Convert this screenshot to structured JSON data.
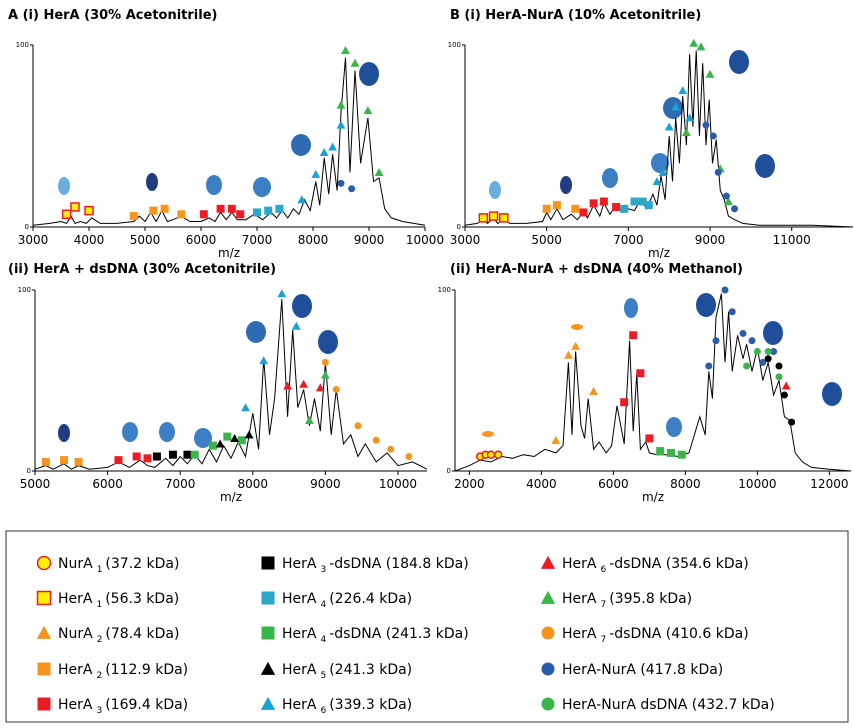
{
  "chart_data": [
    {
      "type": "line",
      "title": "A  (i) HerA (30% Acetonitrile)",
      "x_label": "m/z",
      "xlim": [
        3000,
        10000
      ],
      "xticks": [
        3000,
        4000,
        5000,
        6000,
        7000,
        8000,
        9000,
        10000
      ],
      "ylim": [
        0,
        100
      ],
      "yticks": [
        0,
        100
      ],
      "spectrum": {
        "color": "#000000",
        "x": [
          3000,
          3300,
          3500,
          3600,
          3680,
          3750,
          3850,
          3950,
          4050,
          4200,
          4500,
          4800,
          4900,
          5000,
          5100,
          5200,
          5300,
          5400,
          5500,
          5650,
          5800,
          6000,
          6150,
          6250,
          6350,
          6450,
          6550,
          6650,
          6800,
          6950,
          7100,
          7250,
          7350,
          7450,
          7550,
          7650,
          7750,
          7850,
          7950,
          8050,
          8120,
          8200,
          8280,
          8350,
          8430,
          8500,
          8580,
          8660,
          8750,
          8850,
          8980,
          9080,
          9180,
          9280,
          9400,
          9600,
          9800,
          10000
        ],
        "values": [
          1,
          2,
          3,
          2,
          6,
          2,
          3,
          2,
          5,
          2,
          2,
          3,
          6,
          3,
          8,
          3,
          9,
          3,
          4,
          6,
          3,
          3,
          5,
          3,
          8,
          4,
          8,
          4,
          4,
          7,
          4,
          8,
          5,
          9,
          5,
          10,
          7,
          15,
          9,
          25,
          12,
          38,
          18,
          40,
          20,
          63,
          93,
          30,
          86,
          35,
          60,
          25,
          27,
          10,
          5,
          3,
          2,
          1
        ]
      },
      "series": [
        {
          "marker": "square",
          "color": "#fff200",
          "edge": "#ed1c24",
          "x": [
            3600,
            3750,
            4000
          ],
          "values": [
            7,
            11,
            9
          ]
        },
        {
          "marker": "square",
          "color": "#f7941d",
          "x": [
            4800,
            5150,
            5350,
            5650
          ],
          "values": [
            6,
            9,
            10,
            7
          ]
        },
        {
          "marker": "square",
          "color": "#ed1c24",
          "x": [
            6050,
            6350,
            6550,
            6700
          ],
          "values": [
            7,
            10,
            10,
            7
          ]
        },
        {
          "marker": "square",
          "color": "#2aa7c9",
          "x": [
            7000,
            7200,
            7400
          ],
          "values": [
            8,
            9,
            10
          ]
        },
        {
          "marker": "triangle",
          "color": "#1ba1d6",
          "x": [
            7800,
            8050,
            8200,
            8350,
            8500
          ],
          "values": [
            15,
            29,
            41,
            44,
            56
          ]
        },
        {
          "marker": "triangle",
          "color": "#39b54a",
          "x": [
            8500,
            8580,
            8750,
            8980,
            9180
          ],
          "values": [
            67,
            97,
            90,
            64,
            30
          ]
        },
        {
          "marker": "circle",
          "color": "#2a5caa",
          "x": [
            8500,
            8690
          ],
          "values": [
            24,
            21
          ]
        }
      ]
    },
    {
      "type": "line",
      "title": "B  (i) HerA-NurA (10% Acetonitrile)",
      "x_label": "m/z",
      "xlim": [
        3000,
        12500
      ],
      "xticks": [
        3000,
        5000,
        7000,
        9000,
        11000
      ],
      "ylim": [
        0,
        100
      ],
      "yticks": [
        0,
        100
      ],
      "spectrum": {
        "color": "#000000",
        "x": [
          3000,
          3300,
          3450,
          3550,
          3700,
          3800,
          3950,
          4100,
          4500,
          4900,
          5000,
          5100,
          5250,
          5400,
          5600,
          5750,
          5900,
          6000,
          6150,
          6300,
          6400,
          6550,
          6700,
          6850,
          7000,
          7150,
          7300,
          7450,
          7600,
          7700,
          7800,
          7900,
          8000,
          8080,
          8160,
          8250,
          8330,
          8420,
          8500,
          8580,
          8660,
          8740,
          8820,
          8900,
          8980,
          9060,
          9150,
          9250,
          9350,
          9450,
          9600,
          9800,
          10200,
          10800,
          11500,
          12500
        ],
        "values": [
          1,
          2,
          4,
          2,
          5,
          2,
          4,
          2,
          2,
          3,
          8,
          4,
          10,
          4,
          7,
          4,
          8,
          5,
          12,
          6,
          13,
          7,
          12,
          8,
          10,
          9,
          15,
          10,
          18,
          12,
          28,
          15,
          50,
          25,
          60,
          35,
          72,
          45,
          95,
          55,
          97,
          50,
          90,
          45,
          70,
          35,
          48,
          20,
          15,
          6,
          4,
          2,
          1,
          1,
          1,
          0
        ]
      },
      "series": [
        {
          "marker": "square",
          "color": "#fff200",
          "edge": "#ed1c24",
          "x": [
            3450,
            3700,
            3950
          ],
          "values": [
            5,
            6,
            5
          ]
        },
        {
          "marker": "square",
          "color": "#f7941d",
          "x": [
            5000,
            5250,
            5700
          ],
          "values": [
            10,
            12,
            10
          ]
        },
        {
          "marker": "square",
          "color": "#ed1c24",
          "x": [
            5900,
            6150,
            6400,
            6700
          ],
          "values": [
            8,
            13,
            14,
            11
          ]
        },
        {
          "marker": "square",
          "color": "#2aa7c9",
          "x": [
            6900,
            7150,
            7350,
            7500
          ],
          "values": [
            10,
            14,
            14,
            12
          ]
        },
        {
          "marker": "triangle",
          "color": "#1ba1d6",
          "x": [
            7700,
            7850,
            8000,
            8160,
            8330,
            8500
          ],
          "values": [
            25,
            30,
            55,
            66,
            75,
            60
          ]
        },
        {
          "marker": "triangle",
          "color": "#39b54a",
          "x": [
            8420,
            8600,
            8780,
            9000,
            9250,
            9450
          ],
          "values": [
            52,
            101,
            99,
            84,
            32,
            14
          ]
        },
        {
          "marker": "circle",
          "color": "#2a5caa",
          "x": [
            8900,
            9080,
            9200,
            9400,
            9600
          ],
          "values": [
            56,
            50,
            30,
            17,
            10
          ]
        }
      ]
    },
    {
      "type": "line",
      "title": "(ii) HerA + dsDNA (30% Acetonitrile)",
      "x_label": "m/z",
      "xlim": [
        5000,
        10400
      ],
      "xticks": [
        5000,
        6000,
        7000,
        8000,
        9000,
        10000
      ],
      "ylim": [
        0,
        100
      ],
      "yticks": [
        0,
        100
      ],
      "spectrum": {
        "color": "#000000",
        "x": [
          5000,
          5150,
          5250,
          5400,
          5500,
          5600,
          5750,
          6000,
          6150,
          6300,
          6450,
          6550,
          6650,
          6800,
          6900,
          7000,
          7100,
          7200,
          7300,
          7400,
          7500,
          7600,
          7700,
          7800,
          7900,
          8000,
          8080,
          8150,
          8230,
          8300,
          8400,
          8480,
          8550,
          8620,
          8700,
          8780,
          8850,
          8930,
          9000,
          9080,
          9150,
          9250,
          9350,
          9450,
          9550,
          9700,
          9850,
          10000,
          10200,
          10400
        ],
        "values": [
          1,
          3,
          1,
          4,
          1,
          3,
          1,
          2,
          5,
          2,
          6,
          3,
          2,
          7,
          3,
          8,
          4,
          9,
          4,
          12,
          5,
          14,
          7,
          16,
          8,
          32,
          12,
          62,
          20,
          40,
          95,
          30,
          78,
          35,
          45,
          25,
          40,
          22,
          60,
          20,
          45,
          15,
          20,
          8,
          15,
          5,
          10,
          3,
          5,
          1
        ]
      },
      "series": [
        {
          "marker": "square",
          "color": "#f7941d",
          "x": [
            5150,
            5400,
            5600
          ],
          "values": [
            5,
            6,
            5
          ]
        },
        {
          "marker": "square",
          "color": "#ed1c24",
          "x": [
            6150,
            6400,
            6550
          ],
          "values": [
            6,
            8,
            7
          ]
        },
        {
          "marker": "square",
          "color": "#000000",
          "x": [
            6680,
            6900,
            7100
          ],
          "values": [
            8,
            9,
            9
          ]
        },
        {
          "marker": "square",
          "color": "#39b54a",
          "x": [
            7200,
            7450,
            7650,
            7850
          ],
          "values": [
            9,
            14,
            19,
            17
          ]
        },
        {
          "marker": "triangle",
          "color": "#000000",
          "x": [
            7550,
            7750,
            7950
          ],
          "values": [
            15,
            18,
            20
          ]
        },
        {
          "marker": "triangle",
          "color": "#1ba1d6",
          "x": [
            7900,
            8150,
            8400,
            8600
          ],
          "values": [
            35,
            61,
            98,
            80
          ]
        },
        {
          "marker": "triangle",
          "color": "#ed1c24",
          "x": [
            8480,
            8700,
            8930
          ],
          "values": [
            47,
            48,
            46
          ]
        },
        {
          "marker": "triangle",
          "color": "#39b54a",
          "x": [
            8780,
            9000
          ],
          "values": [
            28,
            53
          ]
        },
        {
          "marker": "circle",
          "color": "#f7941d",
          "x": [
            9000,
            9150,
            9450,
            9700,
            9900,
            10150
          ],
          "values": [
            60,
            45,
            25,
            17,
            12,
            8
          ]
        }
      ]
    },
    {
      "type": "line",
      "title": "(ii) HerA-NurA + dsDNA (40% Methanol)",
      "x_label": "m/z",
      "xlim": [
        1600,
        12600
      ],
      "xticks": [
        2000,
        4000,
        6000,
        8000,
        10000,
        12000
      ],
      "ylim": [
        0,
        100
      ],
      "yticks": [
        0,
        100
      ],
      "spectrum": {
        "color": "#000000",
        "x": [
          1600,
          2000,
          2300,
          2600,
          2900,
          3200,
          3500,
          3800,
          4100,
          4400,
          4600,
          4750,
          4850,
          4950,
          5100,
          5200,
          5300,
          5450,
          5600,
          5800,
          5950,
          6100,
          6300,
          6450,
          6550,
          6650,
          6750,
          6900,
          7000,
          7200,
          7500,
          7800,
          8100,
          8400,
          8550,
          8650,
          8750,
          8850,
          9000,
          9100,
          9200,
          9300,
          9450,
          9600,
          9700,
          9850,
          10000,
          10150,
          10300,
          10450,
          10600,
          10750,
          10900,
          11050,
          11250,
          11500,
          12000,
          12600
        ],
        "values": [
          0,
          3,
          6,
          5,
          8,
          7,
          9,
          8,
          12,
          10,
          14,
          60,
          20,
          66,
          25,
          18,
          40,
          12,
          16,
          10,
          14,
          36,
          15,
          72,
          22,
          54,
          12,
          16,
          10,
          9,
          9,
          8,
          10,
          30,
          20,
          55,
          40,
          85,
          98,
          60,
          88,
          55,
          75,
          62,
          70,
          55,
          68,
          50,
          60,
          42,
          50,
          30,
          28,
          10,
          5,
          2,
          1,
          0
        ]
      },
      "series": [
        {
          "marker": "circle",
          "color": "#fff200",
          "edge": "#ed1c24",
          "x": [
            2300,
            2450,
            2600,
            2800
          ],
          "values": [
            8,
            9,
            9,
            9
          ]
        },
        {
          "marker": "triangle",
          "color": "#f7941d",
          "x": [
            4400,
            4750,
            4950,
            5450
          ],
          "values": [
            17,
            64,
            69,
            44
          ]
        },
        {
          "marker": "square",
          "color": "#ed1c24",
          "x": [
            6300,
            6550,
            6750,
            7000
          ],
          "values": [
            38,
            75,
            54,
            18
          ]
        },
        {
          "marker": "square",
          "color": "#39b54a",
          "x": [
            7300,
            7600,
            7900
          ],
          "values": [
            11,
            10,
            9
          ]
        },
        {
          "marker": "circle",
          "color": "#2a5caa",
          "x": [
            8650,
            8850,
            9100,
            9300,
            9600,
            9850,
            10150,
            10450
          ],
          "values": [
            58,
            72,
            100,
            88,
            76,
            72,
            60,
            66
          ]
        },
        {
          "marker": "circle",
          "color": "#39b54a",
          "x": [
            9700,
            10000,
            10300,
            10600
          ],
          "values": [
            58,
            66,
            66,
            52
          ]
        },
        {
          "marker": "circle",
          "color": "#000000",
          "x": [
            10300,
            10600,
            10750,
            10950
          ],
          "values": [
            62,
            58,
            42,
            27
          ]
        },
        {
          "marker": "triangle",
          "color": "#ed1c24",
          "x": [
            10800
          ],
          "values": [
            47
          ]
        }
      ]
    }
  ],
  "legend": [
    {
      "text": "NurA",
      "sub": "1",
      "rest": "(37.2 kDa)",
      "marker": "circle",
      "color": "#fff200",
      "edge": "#ed1c24"
    },
    {
      "text": "HerA",
      "sub": "1",
      "rest": "(56.3 kDa)",
      "marker": "square",
      "color": "#fff200",
      "edge": "#ed1c24"
    },
    {
      "text": "NurA",
      "sub": "2",
      "rest": "(78.4 kDa)",
      "marker": "triangle",
      "color": "#f7941d"
    },
    {
      "text": "HerA",
      "sub": "2",
      "rest": "(112.9 kDa)",
      "marker": "square",
      "color": "#f7941d"
    },
    {
      "text": "HerA",
      "sub": "3",
      "rest": "(169.4 kDa)",
      "marker": "square",
      "color": "#ed1c24"
    },
    {
      "text": "HerA",
      "sub": "3",
      "rest": "-dsDNA (184.8 kDa)",
      "marker": "square",
      "color": "#000000"
    },
    {
      "text": "HerA",
      "sub": "4",
      "rest": "(226.4 kDa)",
      "marker": "square",
      "color": "#2aa7c9"
    },
    {
      "text": "HerA",
      "sub": "4",
      "rest": "-dsDNA (241.3 kDa)",
      "marker": "square",
      "color": "#39b54a"
    },
    {
      "text": "HerA",
      "sub": "5",
      "rest": "(241.3 kDa)",
      "marker": "triangle",
      "color": "#000000"
    },
    {
      "text": "HerA",
      "sub": "6",
      "rest": "(339.3 kDa)",
      "marker": "triangle",
      "color": "#1ba1d6"
    },
    {
      "text": "HerA",
      "sub": "6",
      "rest": "-dsDNA (354.6 kDa)",
      "marker": "triangle",
      "color": "#ed1c24"
    },
    {
      "text": "HerA",
      "sub": "7",
      "rest": "(395.8 kDa)",
      "marker": "triangle",
      "color": "#39b54a"
    },
    {
      "text": "HerA",
      "sub": "7",
      "rest": "-dsDNA (410.6 kDa)",
      "marker": "circle",
      "color": "#f7941d"
    },
    {
      "text": "HerA-NurA (417.8 kDa)",
      "marker": "circle",
      "color": "#2a5caa"
    },
    {
      "text": "HerA-NurA dsDNA (432.7 kDa)",
      "marker": "circle",
      "color": "#39b54a"
    }
  ]
}
